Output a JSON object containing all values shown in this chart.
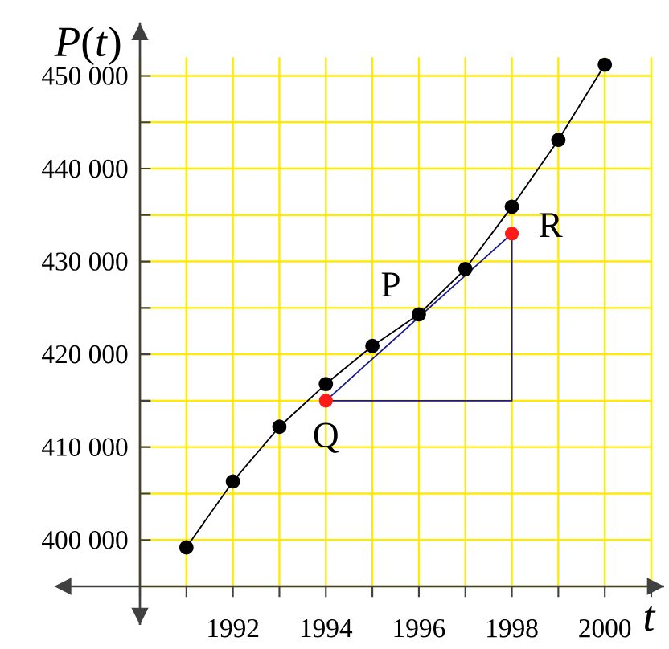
{
  "chart_data": {
    "type": "line",
    "xlabel": "t",
    "ylabel": "*P*(*t*)",
    "xlim": [
      1990,
      2001
    ],
    "ylim": [
      395000,
      452000
    ],
    "xticks": [
      {
        "value": 1990,
        "label": null
      },
      {
        "value": 1991,
        "label": null
      },
      1992,
      {
        "value": 1993,
        "label": null
      },
      1994,
      {
        "value": 1995,
        "label": null
      },
      1996,
      {
        "value": 1997,
        "label": null
      },
      1998,
      {
        "value": 1999,
        "label": null
      },
      2000,
      {
        "value": 2001,
        "label": null
      }
    ],
    "yticks": [
      {
        "value": 395000,
        "label": null
      },
      {
        "value": 400000,
        "label": "400 000"
      },
      {
        "value": 405000,
        "label": null
      },
      {
        "value": 410000,
        "label": "410 000"
      },
      {
        "value": 415000,
        "label": null
      },
      {
        "value": 420000,
        "label": "420 000"
      },
      {
        "value": 425000,
        "label": null
      },
      {
        "value": 430000,
        "label": "430 000"
      },
      {
        "value": 435000,
        "label": null
      },
      {
        "value": 440000,
        "label": "440 000"
      },
      {
        "value": 445000,
        "label": null
      },
      {
        "value": 450000,
        "label": "450 000"
      }
    ],
    "grid": true,
    "line_style": "solid",
    "series": [
      {
        "color": "#000000",
        "marker": "circle",
        "x": [
          1991,
          1992,
          1993,
          1994,
          1995,
          1996,
          1997,
          1998,
          1999,
          2000
        ],
        "values": [
          399200,
          406300,
          412200,
          416800,
          420900,
          424300,
          429200,
          435900,
          443100,
          451200
        ]
      },
      {
        "color": "#1a1a8c",
        "marker": "none",
        "x": [
          1994,
          1998
        ],
        "values": [
          415000,
          433000
        ]
      },
      {
        "color": "#1a1a8c",
        "marker": "none",
        "x": [
          1994,
          1998,
          1998
        ],
        "values": [
          415000,
          415000,
          433000
        ]
      },
      {
        "type": "scatter",
        "color": "#ff1a1a",
        "marker": "circle",
        "x": [
          1994,
          1998
        ],
        "values": [
          415000,
          433000
        ]
      }
    ],
    "annotations": [
      {
        "text": "P",
        "x": 1996,
        "y": 424300
      },
      {
        "text": "Q",
        "x": 1994,
        "y": 415000
      },
      {
        "text": "R",
        "x": 1998,
        "y": 433000
      }
    ]
  }
}
